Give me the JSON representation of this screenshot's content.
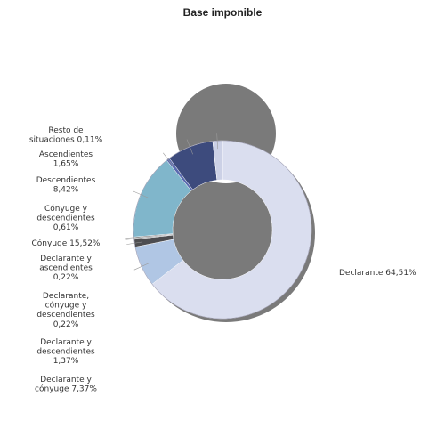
{
  "chart_data": {
    "type": "pie",
    "style": "donut",
    "title": "Base imponible",
    "slices": [
      {
        "label_lines": [
          "Declarante 64,51%"
        ],
        "value": 64.51,
        "color": "#dadeef"
      },
      {
        "label_lines": [
          "Declarante y",
          "cónyuge 7,37%"
        ],
        "value": 7.37,
        "color": "#b0c6e4"
      },
      {
        "label_lines": [
          "Declarante y",
          "descendientes",
          "1,37%"
        ],
        "value": 1.37,
        "color": "#4d4d50"
      },
      {
        "label_lines": [
          "Declarante,",
          "cónyuge y",
          "descendientes",
          "0,22%"
        ],
        "value": 0.22,
        "color": "#8c8c90"
      },
      {
        "label_lines": [
          "Declarante y",
          "ascendientes",
          "0,22%"
        ],
        "value": 0.22,
        "color": "#6d6d70"
      },
      {
        "label_lines": [
          "Cónyuge 15,52%"
        ],
        "value": 15.52,
        "color": "#80b6cb"
      },
      {
        "label_lines": [
          "Cónyuge y",
          "descendientes",
          "0,61%"
        ],
        "value": 0.61,
        "color": "#5b6bb0"
      },
      {
        "label_lines": [
          "Descendientes",
          "8,42%"
        ],
        "value": 8.42,
        "color": "#3d4b7d"
      },
      {
        "label_lines": [
          "Ascendientes",
          "1,65%"
        ],
        "value": 1.65,
        "color": "#ccd1e6"
      },
      {
        "label_lines": [
          "Resto de",
          "situaciones 0,11%"
        ],
        "value": 0.11,
        "color": "#9aa2c0"
      }
    ]
  }
}
